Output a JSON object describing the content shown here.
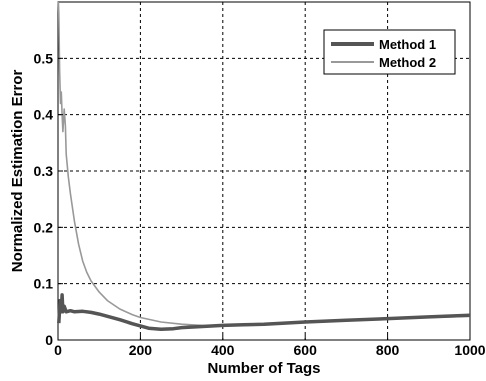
{
  "chart_data": {
    "type": "line",
    "title": "",
    "xlabel": "Number of Tags",
    "ylabel": "Normalized Estimation Error",
    "xlim": [
      0,
      1000
    ],
    "ylim": [
      0,
      0.6
    ],
    "x_ticks": [
      0,
      200,
      400,
      600,
      800,
      1000
    ],
    "y_ticks": [
      0,
      0.1,
      0.2,
      0.3,
      0.4,
      0.5
    ],
    "x_tick_labels": [
      "0",
      "200",
      "400",
      "600",
      "800",
      "1000"
    ],
    "y_tick_labels": [
      "0",
      "0.1",
      "0.2",
      "0.3",
      "0.4",
      "0.5"
    ],
    "grid": true,
    "legend_position": "top-right",
    "series": [
      {
        "name": "Method 1",
        "color": "#555555",
        "x": [
          2,
          5,
          8,
          10,
          12,
          15,
          20,
          30,
          40,
          60,
          80,
          100,
          120,
          150,
          180,
          200,
          220,
          250,
          280,
          300,
          350,
          400,
          450,
          500,
          600,
          700,
          800,
          900,
          1000
        ],
        "y": [
          0.03,
          0.07,
          0.05,
          0.08,
          0.05,
          0.06,
          0.05,
          0.052,
          0.05,
          0.051,
          0.049,
          0.046,
          0.042,
          0.036,
          0.029,
          0.025,
          0.021,
          0.019,
          0.02,
          0.022,
          0.024,
          0.026,
          0.027,
          0.028,
          0.032,
          0.035,
          0.038,
          0.041,
          0.044
        ]
      },
      {
        "name": "Method 2",
        "color": "#999999",
        "x": [
          1,
          2,
          4,
          6,
          8,
          10,
          12,
          15,
          18,
          20,
          25,
          30,
          40,
          50,
          60,
          70,
          80,
          100,
          120,
          150,
          180,
          200,
          250,
          300,
          350,
          400,
          450,
          500,
          600,
          700,
          800,
          900,
          1000
        ],
        "y": [
          0.6,
          0.58,
          0.48,
          0.42,
          0.44,
          0.4,
          0.37,
          0.41,
          0.38,
          0.33,
          0.29,
          0.26,
          0.21,
          0.17,
          0.14,
          0.12,
          0.105,
          0.085,
          0.07,
          0.055,
          0.045,
          0.04,
          0.032,
          0.028,
          0.026,
          0.025,
          0.026,
          0.027,
          0.031,
          0.034,
          0.037,
          0.04,
          0.042
        ]
      }
    ]
  }
}
